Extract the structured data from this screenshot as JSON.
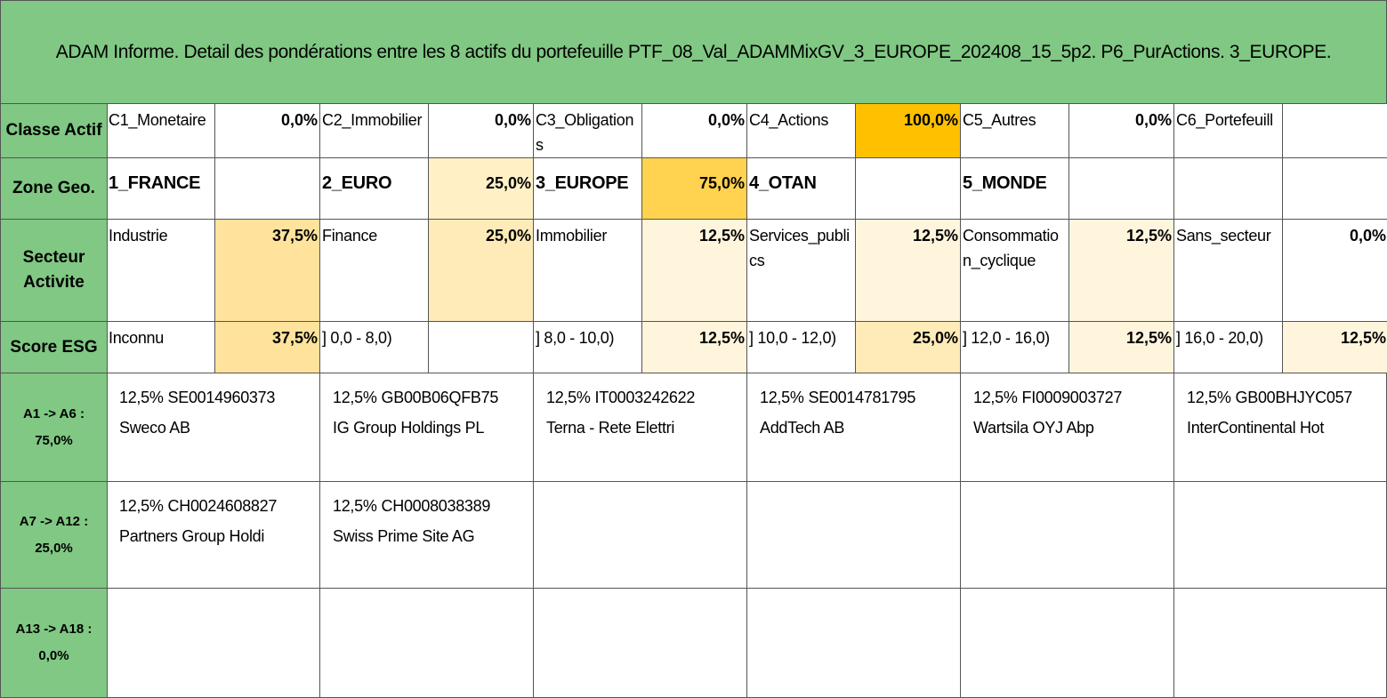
{
  "title": "ADAM Informe. Detail des pondérations entre les 8 actifs du portefeuille PTF_08_Val_ADAMMixGV_3_EUROPE_202408_15_5p2. P6_PurActions. 3_EUROPE.",
  "classification": [
    {
      "label": "Classe Actif",
      "cells": [
        {
          "name": "C1_Monetaire",
          "weight": "0,0%"
        },
        {
          "name": "C2_Immobilier",
          "weight": "0,0%"
        },
        {
          "name": "C3_Obligations",
          "weight": "0,0%"
        },
        {
          "name": "C4_Actions",
          "weight": "100,0%",
          "color": "#ffc000"
        },
        {
          "name": "C5_Autres",
          "weight": "0,0%"
        },
        {
          "name": "C6_Portefeuill"
        }
      ]
    },
    {
      "label": "Zone Geo.",
      "cells": [
        {
          "name": "1_FRANCE"
        },
        {
          "name": "2_EURO",
          "weight": "25,0%",
          "color": "#fff0c6"
        },
        {
          "name": "3_EUROPE",
          "weight": "75,0%",
          "color": "#ffd24f"
        },
        {
          "name": "4_OTAN"
        },
        {
          "name": "5_MONDE"
        },
        {}
      ]
    },
    {
      "label": "Secteur Activite",
      "cells": [
        {
          "name": "Industrie",
          "weight": "37,5%",
          "color": "#ffe39c"
        },
        {
          "name": "Finance",
          "weight": "25,0%",
          "color": "#ffebb8"
        },
        {
          "name": "Immobilier",
          "weight": "12,5%",
          "color": "#fff5dd"
        },
        {
          "name": "Services_publics",
          "weight": "12,5%",
          "color": "#fff5dd"
        },
        {
          "name": "Consommation_cyclique",
          "weight": "12,5%",
          "color": "#fff5dd"
        },
        {
          "name": "Sans_secteur",
          "weight": "0,0%"
        }
      ]
    },
    {
      "label": "Score ESG",
      "cells": [
        {
          "name": "Inconnu",
          "weight": "37,5%",
          "color": "#ffe39c"
        },
        {
          "name": "] 0,0 - 8,0)"
        },
        {
          "name": "] 8,0 - 10,0)",
          "weight": "12,5%",
          "color": "#fff5dd"
        },
        {
          "name": "] 10,0 - 12,0)",
          "weight": "25,0%",
          "color": "#ffebb8"
        },
        {
          "name": "] 12,0 - 16,0)",
          "weight": "12,5%",
          "color": "#fff5dd"
        },
        {
          "name": "] 16,0 - 20,0)",
          "weight": "12,5%",
          "color": "#fff5dd"
        }
      ]
    }
  ],
  "assets": [
    {
      "label": "A1 -> A6 :",
      "weight": "75,0%",
      "holdings": [
        {
          "weight": "12,5%",
          "isin": "SE0014960373",
          "name": "Sweco AB"
        },
        {
          "weight": "12,5%",
          "isin": "GB00B06QFB75",
          "name": "IG Group Holdings PL"
        },
        {
          "weight": "12,5%",
          "isin": "IT0003242622",
          "name": "Terna - Rete Elettri"
        },
        {
          "weight": "12,5%",
          "isin": "SE0014781795",
          "name": "AddTech AB"
        },
        {
          "weight": "12,5%",
          "isin": "FI0009003727",
          "name": "Wartsila OYJ Abp"
        },
        {
          "weight": "12,5%",
          "isin": "GB00BHJYC057",
          "name": "InterContinental Hot"
        }
      ]
    },
    {
      "label": "A7 -> A12 :",
      "weight": "25,0%",
      "holdings": [
        {
          "weight": "12,5%",
          "isin": "CH0024608827",
          "name": "Partners Group Holdi"
        },
        {
          "weight": "12,5%",
          "isin": "CH0008038389",
          "name": "Swiss Prime Site AG"
        }
      ]
    },
    {
      "label": "A13 -> A18 :",
      "weight": "0,0%",
      "holdings": []
    }
  ]
}
